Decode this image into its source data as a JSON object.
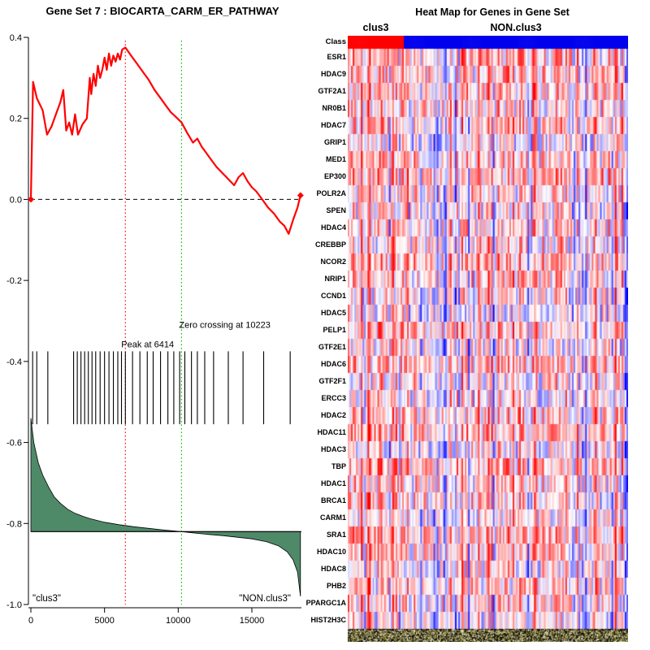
{
  "chart_data": [
    {
      "type": "line",
      "panel": "left",
      "title": "Gene Set  7 : BIOCARTA_CARM_ER_PATHWAY",
      "xlabel": "",
      "ylabel": "",
      "xlim": [
        0,
        18400
      ],
      "ylim": [
        -1.0,
        0.4
      ],
      "x_ticks": [
        0,
        5000,
        10000,
        15000
      ],
      "y_ticks": [
        0.4,
        0.2,
        0.0,
        -0.2,
        -0.4,
        -0.6,
        -0.8,
        -1.0
      ],
      "peak_x": 6414,
      "zero_crossing_x": 10223,
      "peak_line_color": "#ff0000",
      "zero_line_color": "#00bb00",
      "zero_es_line": 0.0,
      "class_labels": [
        "\"clus3\"",
        "\"NON.clus3\""
      ],
      "annotations": [
        {
          "text": "Peak at 6414",
          "x": 6414,
          "y": -0.365
        },
        {
          "text": "Zero crossing at 10223",
          "x": 10223,
          "y": -0.317
        }
      ],
      "hit_marks_y": [
        -0.375,
        -0.555
      ],
      "gene_hits_x": [
        120,
        400,
        1150,
        2900,
        3150,
        3400,
        3650,
        3900,
        4150,
        4400,
        4700,
        5000,
        5300,
        5600,
        5900,
        6150,
        6414,
        6900,
        7400,
        7900,
        8300,
        8800,
        9300,
        9700,
        10100,
        10450,
        10900,
        11300,
        11800,
        12400,
        13400,
        14400,
        15800,
        17600
      ],
      "series": [
        {
          "name": "Running enrichment score",
          "color": "#ff0000",
          "x": [
            0,
            150,
            400,
            800,
            1100,
            1400,
            1700,
            2000,
            2200,
            2400,
            2600,
            2800,
            3000,
            3200,
            3500,
            3800,
            4000,
            4100,
            4250,
            4400,
            4550,
            4700,
            4850,
            5000,
            5150,
            5300,
            5450,
            5600,
            5750,
            5900,
            6050,
            6200,
            6414,
            6800,
            7200,
            7600,
            8000,
            8400,
            8800,
            9200,
            9500,
            9800,
            10223,
            10600,
            11000,
            11300,
            11600,
            11900,
            12200,
            12600,
            13000,
            13400,
            13800,
            14100,
            14400,
            14700,
            15000,
            15300,
            15700,
            16100,
            16500,
            16900,
            17200,
            17500,
            17800,
            18100,
            18300
          ],
          "y": [
            0.0,
            0.29,
            0.25,
            0.22,
            0.16,
            0.18,
            0.21,
            0.24,
            0.27,
            0.17,
            0.19,
            0.16,
            0.21,
            0.16,
            0.185,
            0.2,
            0.3,
            0.26,
            0.31,
            0.28,
            0.33,
            0.3,
            0.32,
            0.35,
            0.32,
            0.36,
            0.33,
            0.355,
            0.34,
            0.36,
            0.345,
            0.37,
            0.375,
            0.355,
            0.335,
            0.315,
            0.295,
            0.27,
            0.25,
            0.23,
            0.215,
            0.205,
            0.19,
            0.165,
            0.14,
            0.15,
            0.13,
            0.115,
            0.1,
            0.08,
            0.065,
            0.05,
            0.035,
            0.055,
            0.065,
            0.045,
            0.03,
            0.02,
            0.0,
            -0.02,
            -0.035,
            -0.055,
            -0.065,
            -0.085,
            -0.05,
            -0.02,
            0.01
          ]
        },
        {
          "name": "Ranked list metric",
          "color": "#4f8a68",
          "baseline": -0.82,
          "x": [
            0,
            200,
            500,
            800,
            1200,
            1600,
            2000,
            2500,
            3000,
            3500,
            4000,
            5000,
            6000,
            7000,
            8000,
            9000,
            10223,
            11000,
            12000,
            13000,
            14000,
            15000,
            16000,
            16800,
            17400,
            17800,
            18100,
            18300
          ],
          "y": [
            -0.54,
            -0.6,
            -0.65,
            -0.68,
            -0.71,
            -0.735,
            -0.75,
            -0.765,
            -0.775,
            -0.782,
            -0.788,
            -0.797,
            -0.803,
            -0.808,
            -0.812,
            -0.816,
            -0.82,
            -0.823,
            -0.827,
            -0.83,
            -0.834,
            -0.838,
            -0.845,
            -0.855,
            -0.87,
            -0.89,
            -0.92,
            -0.98
          ]
        }
      ]
    },
    {
      "type": "heatmap",
      "panel": "right",
      "title": "Heat Map for Genes in Gene Set",
      "class_row_label": "Class",
      "classes": [
        {
          "label": "clus3",
          "color": "#ff0000",
          "fraction": 0.2
        },
        {
          "label": "NON.clus3",
          "color": "#0000ee",
          "fraction": 0.8
        }
      ],
      "genes": [
        "ESR1",
        "HDAC9",
        "GTF2A1",
        "NR0B1",
        "HDAC7",
        "GRIP1",
        "MED1",
        "EP300",
        "POLR2A",
        "SPEN",
        "HDAC4",
        "CREBBP",
        "NCOR2",
        "NRIP1",
        "CCND1",
        "HDAC5",
        "PELP1",
        "GTF2E1",
        "HDAC6",
        "GTF2F1",
        "ERCC3",
        "HDAC2",
        "HDAC11",
        "HDAC3",
        "TBP",
        "HDAC1",
        "BRCA1",
        "CARM1",
        "SRA1",
        "HDAC10",
        "HDAC8",
        "PHB2",
        "PPARGC1A",
        "HIST2H3C"
      ],
      "palette": {
        "low": "#0000ff",
        "mid": "#ffffff",
        "high": "#ff0000"
      },
      "legend_position": "none",
      "grid": false,
      "n_samples": 170,
      "seed": 20
    }
  ]
}
